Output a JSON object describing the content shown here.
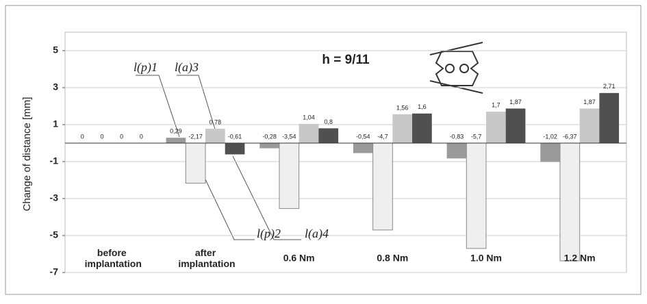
{
  "chart_data": {
    "type": "bar",
    "title": "h = 9/11",
    "y_label": "Change of distance [mm]",
    "categories": [
      "before implantation",
      "after implantation",
      "0.6 Nm",
      "0.8 Nm",
      "1.0 Nm",
      "1.2 Nm"
    ],
    "series": [
      {
        "name": "l(p)1",
        "color": "#9a9a9a",
        "values": [
          0,
          0.29,
          -0.28,
          -0.54,
          -0.83,
          -1.02
        ],
        "value_labels": [
          "0",
          "0,29",
          "-0,28",
          "-0,54",
          "-0,83",
          "-1,02"
        ]
      },
      {
        "name": "l(p)2",
        "color": "#efefef",
        "values": [
          0,
          -2.17,
          -3.54,
          -4.7,
          -5.7,
          -6.37
        ],
        "value_labels": [
          "0",
          "-2,17",
          "-3,54",
          "-4,7",
          "-5,7",
          "-6,37"
        ]
      },
      {
        "name": "l(a)3",
        "color": "#c8c8c8",
        "values": [
          0,
          0.78,
          1.04,
          1.56,
          1.7,
          1.87
        ],
        "value_labels": [
          "0",
          "0,78",
          "1,04",
          "1,56",
          "1,7",
          "1,87"
        ]
      },
      {
        "name": "l(a)4",
        "color": "#505050",
        "values": [
          0,
          -0.61,
          0.8,
          1.6,
          1.87,
          2.71
        ],
        "value_labels": [
          "0",
          "-0,61",
          "0,8",
          "1,6",
          "1,87",
          "2,71"
        ]
      }
    ],
    "ylim": [
      -7,
      6
    ],
    "yticks": [
      5,
      3,
      1,
      -1,
      -3,
      -5,
      -7
    ],
    "grid": true
  }
}
